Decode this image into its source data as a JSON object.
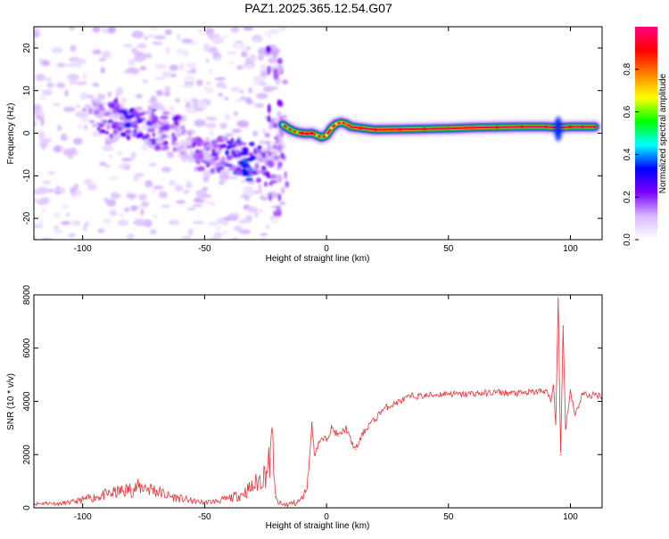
{
  "title": "PAZ1.2025.365.12.54.G07",
  "chart_data": [
    {
      "type": "heatmap",
      "xlabel": "Height of straight line (km)",
      "ylabel": "Frequency (Hz)",
      "xlim": [
        -120,
        113
      ],
      "ylim": [
        -25,
        25
      ],
      "x_ticks": [
        -100,
        -50,
        0,
        50,
        100
      ],
      "y_ticks": [
        -20,
        -10,
        0,
        10,
        20
      ],
      "x_tick_labels": [
        "-100",
        "-50",
        "0",
        "50",
        "100"
      ],
      "y_tick_labels": [
        "-20",
        "-10",
        "0",
        "10",
        "20"
      ],
      "colorbar": {
        "label": "Normalized spectral amplitude",
        "range": [
          0,
          1
        ],
        "ticks": [
          0.0,
          0.2,
          0.4,
          0.6,
          0.8
        ],
        "tick_labels": [
          "0.0",
          "0.2",
          "0.4",
          "0.6",
          "0.8"
        ],
        "colors": [
          "#ffffff",
          "#d7b8ff",
          "#7a00ff",
          "#0000ff",
          "#00ffff",
          "#00ff00",
          "#ffff00",
          "#ff8000",
          "#ff0000",
          "#ff0080"
        ]
      },
      "ridge": {
        "x": [
          -18,
          -16,
          -14,
          -12,
          -10,
          -8,
          -6,
          -4,
          -2,
          0,
          2,
          4,
          6,
          8,
          10,
          14,
          20,
          30,
          40,
          50,
          60,
          70,
          80,
          90,
          95,
          100,
          105,
          110
        ],
        "y": [
          2,
          1.2,
          0.6,
          0.2,
          0,
          -0.1,
          0,
          -0.5,
          -1,
          -0.5,
          1.2,
          2.2,
          2.5,
          2.2,
          1.5,
          1.2,
          0.8,
          0.9,
          1.0,
          1.1,
          1.3,
          1.4,
          1.5,
          1.5,
          1.3,
          1.5,
          1.5,
          1.5
        ],
        "amplitude": [
          0.45,
          0.5,
          0.55,
          0.6,
          0.9,
          0.95,
          0.9,
          0.6,
          0.55,
          0.65,
          0.7,
          0.7,
          0.75,
          0.8,
          0.85,
          0.9,
          0.95,
          0.95,
          0.9,
          0.85,
          0.85,
          0.9,
          0.95,
          0.95,
          0.6,
          0.9,
          0.95,
          0.95
        ]
      },
      "noise_region": {
        "x_range": [
          -120,
          -18
        ],
        "y_range": [
          -25,
          25
        ],
        "cluster": {
          "x": [
            -95,
            -90,
            -85,
            -80,
            -75,
            -70,
            -65,
            -60,
            -55,
            -50,
            -45,
            -40,
            -35,
            -30,
            -25,
            -22
          ],
          "y": [
            5,
            4,
            3,
            3,
            2,
            1,
            0,
            -2,
            -3,
            -5,
            -6,
            -5,
            -6,
            -7,
            -8,
            -4
          ],
          "amplitude": [
            0.15,
            0.2,
            0.2,
            0.3,
            0.25,
            0.2,
            0.2,
            0.15,
            0.15,
            0.2,
            0.2,
            0.3,
            0.35,
            0.35,
            0.2,
            0.15
          ]
        }
      }
    },
    {
      "type": "line",
      "xlabel": "Height of straight line (km)",
      "ylabel": "SNR (10 * v/v)",
      "xlim": [
        -120,
        113
      ],
      "ylim": [
        0,
        8000
      ],
      "x_ticks": [
        -100,
        -50,
        0,
        50,
        100
      ],
      "y_ticks": [
        0,
        2000,
        4000,
        6000,
        8000
      ],
      "x_tick_labels": [
        "-100",
        "-50",
        "0",
        "50",
        "100"
      ],
      "y_tick_labels": [
        "0",
        "2000",
        "4000",
        "6000",
        "8000"
      ],
      "color": "#ee3333",
      "series": [
        {
          "name": "SNR",
          "x": [
            -120,
            -115,
            -110,
            -105,
            -100,
            -95,
            -90,
            -85,
            -80,
            -75,
            -70,
            -65,
            -60,
            -55,
            -50,
            -45,
            -40,
            -35,
            -30,
            -25,
            -23,
            -22,
            -21,
            -20,
            -18,
            -15,
            -12,
            -10,
            -8,
            -7,
            -6,
            -5,
            -3,
            0,
            2,
            5,
            8,
            10,
            12,
            15,
            18,
            20,
            22,
            25,
            30,
            35,
            40,
            45,
            50,
            55,
            60,
            65,
            70,
            75,
            80,
            85,
            90,
            92,
            93,
            94,
            95,
            96,
            97,
            98,
            100,
            102,
            105,
            108,
            110,
            113
          ],
          "y": [
            150,
            180,
            150,
            200,
            300,
            400,
            500,
            600,
            700,
            800,
            650,
            450,
            350,
            250,
            200,
            250,
            350,
            500,
            800,
            1300,
            1800,
            2600,
            400,
            200,
            100,
            150,
            200,
            350,
            800,
            1800,
            3200,
            2000,
            2500,
            2600,
            3000,
            2700,
            3000,
            2500,
            2200,
            2800,
            3200,
            3300,
            3600,
            3800,
            4000,
            4200,
            4200,
            4250,
            4300,
            4250,
            4300,
            4300,
            4350,
            4300,
            4300,
            4350,
            4400,
            4000,
            4600,
            3200,
            7800,
            2000,
            6800,
            3000,
            4400,
            3500,
            4300,
            4200,
            4250,
            4200
          ]
        }
      ]
    }
  ]
}
